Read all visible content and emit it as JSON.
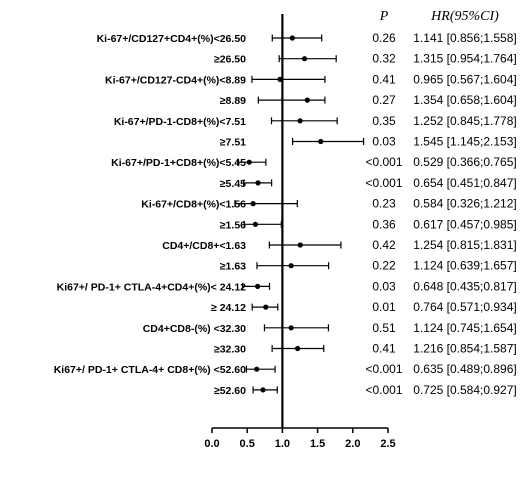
{
  "chart_data": {
    "type": "forest",
    "headers": {
      "p": "P",
      "hr": "HR(95%CI)"
    },
    "reference_line": 1.0,
    "xlim": [
      0.0,
      2.5
    ],
    "xticks": [
      "0.0",
      "0.5",
      "1.0",
      "1.5",
      "2.0",
      "2.5"
    ],
    "rows": [
      {
        "label": "Ki-67+/CD127+CD4+(%)<26.50",
        "hr": 1.141,
        "lo": 0.856,
        "hi": 1.558,
        "p": "0.26",
        "ci_text": "1.141 [0.856;1.558]"
      },
      {
        "label": "≥26.50",
        "hr": 1.315,
        "lo": 0.954,
        "hi": 1.764,
        "p": "0.32",
        "ci_text": "1.315 [0.954;1.764]"
      },
      {
        "label": "Ki-67+/CD127-CD4+(%)<8.89",
        "hr": 0.965,
        "lo": 0.567,
        "hi": 1.604,
        "p": "0.41",
        "ci_text": "0.965 [0.567;1.604]"
      },
      {
        "label": "≥8.89",
        "hr": 1.354,
        "lo": 0.658,
        "hi": 1.604,
        "p": "0.27",
        "ci_text": "1.354 [0.658;1.604]"
      },
      {
        "label": "Ki-67+/PD-1-CD8+(%)<7.51",
        "hr": 1.252,
        "lo": 0.845,
        "hi": 1.778,
        "p": "0.35",
        "ci_text": "1.252 [0.845;1.778]"
      },
      {
        "label": "≥7.51",
        "hr": 1.545,
        "lo": 1.145,
        "hi": 2.153,
        "p": "0.03",
        "ci_text": "1.545 [1.145;2.153]"
      },
      {
        "label": "Ki-67+/PD-1+CD8+(%)<5.45",
        "hr": 0.529,
        "lo": 0.366,
        "hi": 0.765,
        "p": "<0.001",
        "ci_text": "0.529 [0.366;0.765]"
      },
      {
        "label": "≥5.45",
        "hr": 0.654,
        "lo": 0.451,
        "hi": 0.847,
        "p": "<0.001",
        "ci_text": "0.654 [0.451;0.847]"
      },
      {
        "label": "Ki-67+/CD8+(%)<1.56",
        "hr": 0.584,
        "lo": 0.326,
        "hi": 1.212,
        "p": "0.23",
        "ci_text": "0.584 [0.326;1.212]"
      },
      {
        "label": "≥1.56",
        "hr": 0.617,
        "lo": 0.457,
        "hi": 0.985,
        "p": "0.36",
        "ci_text": "0.617 [0.457;0.985]"
      },
      {
        "label": "CD4+/CD8+<1.63",
        "hr": 1.254,
        "lo": 0.815,
        "hi": 1.831,
        "p": "0.42",
        "ci_text": "1.254 [0.815;1.831]"
      },
      {
        "label": "≥1.63",
        "hr": 1.124,
        "lo": 0.639,
        "hi": 1.657,
        "p": "0.22",
        "ci_text": "1.124 [0.639;1.657]"
      },
      {
        "label": "Ki67+/ PD-1+ CTLA-4+CD4+(%)< 24.12",
        "hr": 0.648,
        "lo": 0.435,
        "hi": 0.817,
        "p": "0.03",
        "ci_text": "0.648 [0.435;0.817]"
      },
      {
        "label": "≥ 24.12",
        "hr": 0.764,
        "lo": 0.571,
        "hi": 0.934,
        "p": "0.01",
        "ci_text": "0.764 [0.571;0.934]"
      },
      {
        "label": "CD4+CD8-(%) <32.30",
        "hr": 1.124,
        "lo": 0.745,
        "hi": 1.654,
        "p": "0.51",
        "ci_text": "1.124 [0.745;1.654]"
      },
      {
        "label": "≥32.30",
        "hr": 1.216,
        "lo": 0.854,
        "hi": 1.587,
        "p": "0.41",
        "ci_text": "1.216 [0.854;1.587]"
      },
      {
        "label": "Ki67+/ PD-1+ CTLA-4+ CD8+(%) <52.60",
        "hr": 0.635,
        "lo": 0.489,
        "hi": 0.896,
        "p": "<0.001",
        "ci_text": "0.635 [0.489;0.896]"
      },
      {
        "label": "≥52.60",
        "hr": 0.725,
        "lo": 0.584,
        "hi": 0.927,
        "p": "<0.001",
        "ci_text": "0.725 [0.584;0.927]"
      }
    ]
  }
}
